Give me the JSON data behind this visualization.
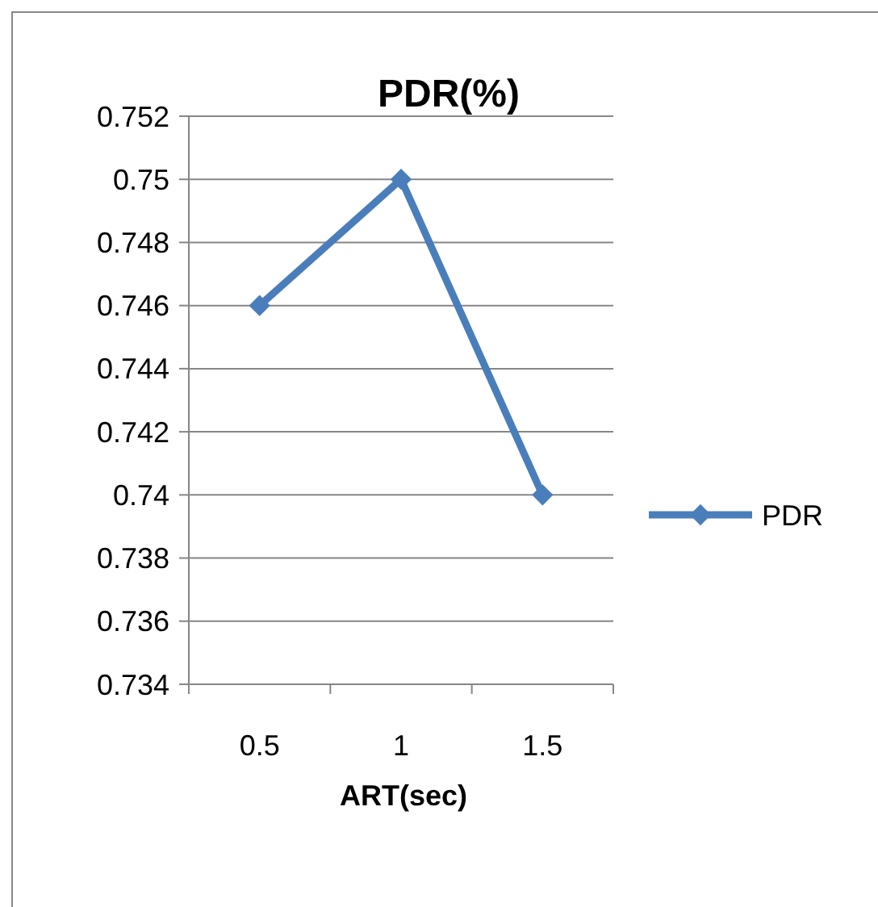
{
  "chart_data": {
    "type": "line",
    "title": "PDR(%)",
    "xlabel": "ART(sec)",
    "categories": [
      "0.5",
      "1",
      "1.5"
    ],
    "series": [
      {
        "name": "PDR",
        "color": "#4a7ebb",
        "values": [
          0.746,
          0.75,
          0.74
        ]
      }
    ],
    "ylim": [
      0.734,
      0.752
    ],
    "yticks": [
      0.734,
      0.736,
      0.738,
      0.74,
      0.742,
      0.744,
      0.746,
      0.748,
      0.75,
      0.752
    ],
    "grid": "y",
    "legend": "right",
    "marker": "diamond",
    "line_style": "solid"
  }
}
